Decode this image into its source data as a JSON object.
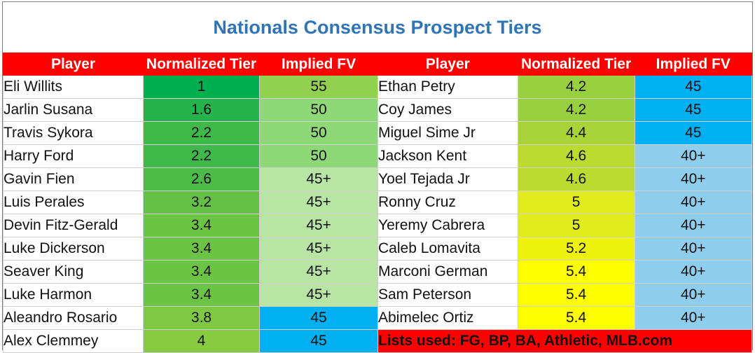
{
  "title": "Nationals Consensus Prospect Tiers",
  "headers": [
    "Player",
    "Normalized Tier",
    "Implied FV"
  ],
  "left_rows": [
    {
      "player": "Eli Willits",
      "tier": "1",
      "fv": "55",
      "tier_color": "#00b050",
      "fv_color": "#92d050"
    },
    {
      "player": "Jarlin Susana",
      "tier": "1.6",
      "fv": "50",
      "tier_color": "#27b34c",
      "fv_color": "#8fd878"
    },
    {
      "player": "Travis Sykora",
      "tier": "2.2",
      "fv": "50",
      "tier_color": "#40b84a",
      "fv_color": "#8fd878"
    },
    {
      "player": "Harry Ford",
      "tier": "2.2",
      "fv": "50",
      "tier_color": "#40b84a",
      "fv_color": "#8fd878"
    },
    {
      "player": "Gavin Fien",
      "tier": "2.6",
      "fv": "45+",
      "tier_color": "#4cbb48",
      "fv_color": "#b8e4a4"
    },
    {
      "player": "Luis Perales",
      "tier": "3.2",
      "fv": "45+",
      "tier_color": "#64c146",
      "fv_color": "#b8e4a4"
    },
    {
      "player": "Devin Fitz-Gerald",
      "tier": "3.4",
      "fv": "45+",
      "tier_color": "#6cc445",
      "fv_color": "#b8e4a4"
    },
    {
      "player": "Luke Dickerson",
      "tier": "3.4",
      "fv": "45+",
      "tier_color": "#6cc445",
      "fv_color": "#b8e4a4"
    },
    {
      "player": "Seaver King",
      "tier": "3.4",
      "fv": "45+",
      "tier_color": "#6cc445",
      "fv_color": "#b8e4a4"
    },
    {
      "player": "Luke Harmon",
      "tier": "3.4",
      "fv": "45+",
      "tier_color": "#6cc445",
      "fv_color": "#b8e4a4"
    },
    {
      "player": "Aleandro Rosario",
      "tier": "3.8",
      "fv": "45",
      "tier_color": "#7ec843",
      "fv_color": "#00b0f0"
    },
    {
      "player": "Alex Clemmey",
      "tier": "4",
      "fv": "45",
      "tier_color": "#88cb42",
      "fv_color": "#00b0f0"
    }
  ],
  "right_rows": [
    {
      "player": "Ethan Petry",
      "tier": "4.2",
      "fv": "45",
      "tier_color": "#98d040",
      "fv_color": "#00b0f0"
    },
    {
      "player": "Coy James",
      "tier": "4.2",
      "fv": "45",
      "tier_color": "#98d040",
      "fv_color": "#00b0f0"
    },
    {
      "player": "Miguel Sime Jr",
      "tier": "4.4",
      "fv": "45",
      "tier_color": "#a8d43a",
      "fv_color": "#00b0f0"
    },
    {
      "player": "Jackson Kent",
      "tier": "4.6",
      "fv": "40+",
      "tier_color": "#bcda30",
      "fv_color": "#8ecdec"
    },
    {
      "player": "Yoel Tejada Jr",
      "tier": "4.6",
      "fv": "40+",
      "tier_color": "#bcda30",
      "fv_color": "#8ecdec"
    },
    {
      "player": "Ronny Cruz",
      "tier": "5",
      "fv": "40+",
      "tier_color": "#e0ec1c",
      "fv_color": "#8ecdec"
    },
    {
      "player": "Yeremy Cabrera",
      "tier": "5",
      "fv": "40+",
      "tier_color": "#e0ec1c",
      "fv_color": "#8ecdec"
    },
    {
      "player": "Caleb Lomavita",
      "tier": "5.2",
      "fv": "40+",
      "tier_color": "#eef30e",
      "fv_color": "#8ecdec"
    },
    {
      "player": "Marconi German",
      "tier": "5.4",
      "fv": "40+",
      "tier_color": "#ffff00",
      "fv_color": "#8ecdec"
    },
    {
      "player": "Sam Peterson",
      "tier": "5.4",
      "fv": "40+",
      "tier_color": "#ffff00",
      "fv_color": "#8ecdec"
    },
    {
      "player": "Abimelec Ortiz",
      "tier": "5.4",
      "fv": "40+",
      "tier_color": "#ffff00",
      "fv_color": "#8ecdec"
    }
  ],
  "footnote": "Lists used: FG, BP, BA, Athletic, MLB.com",
  "colors": {
    "header_bg": "#ff0000",
    "title": "#2f75b5"
  }
}
